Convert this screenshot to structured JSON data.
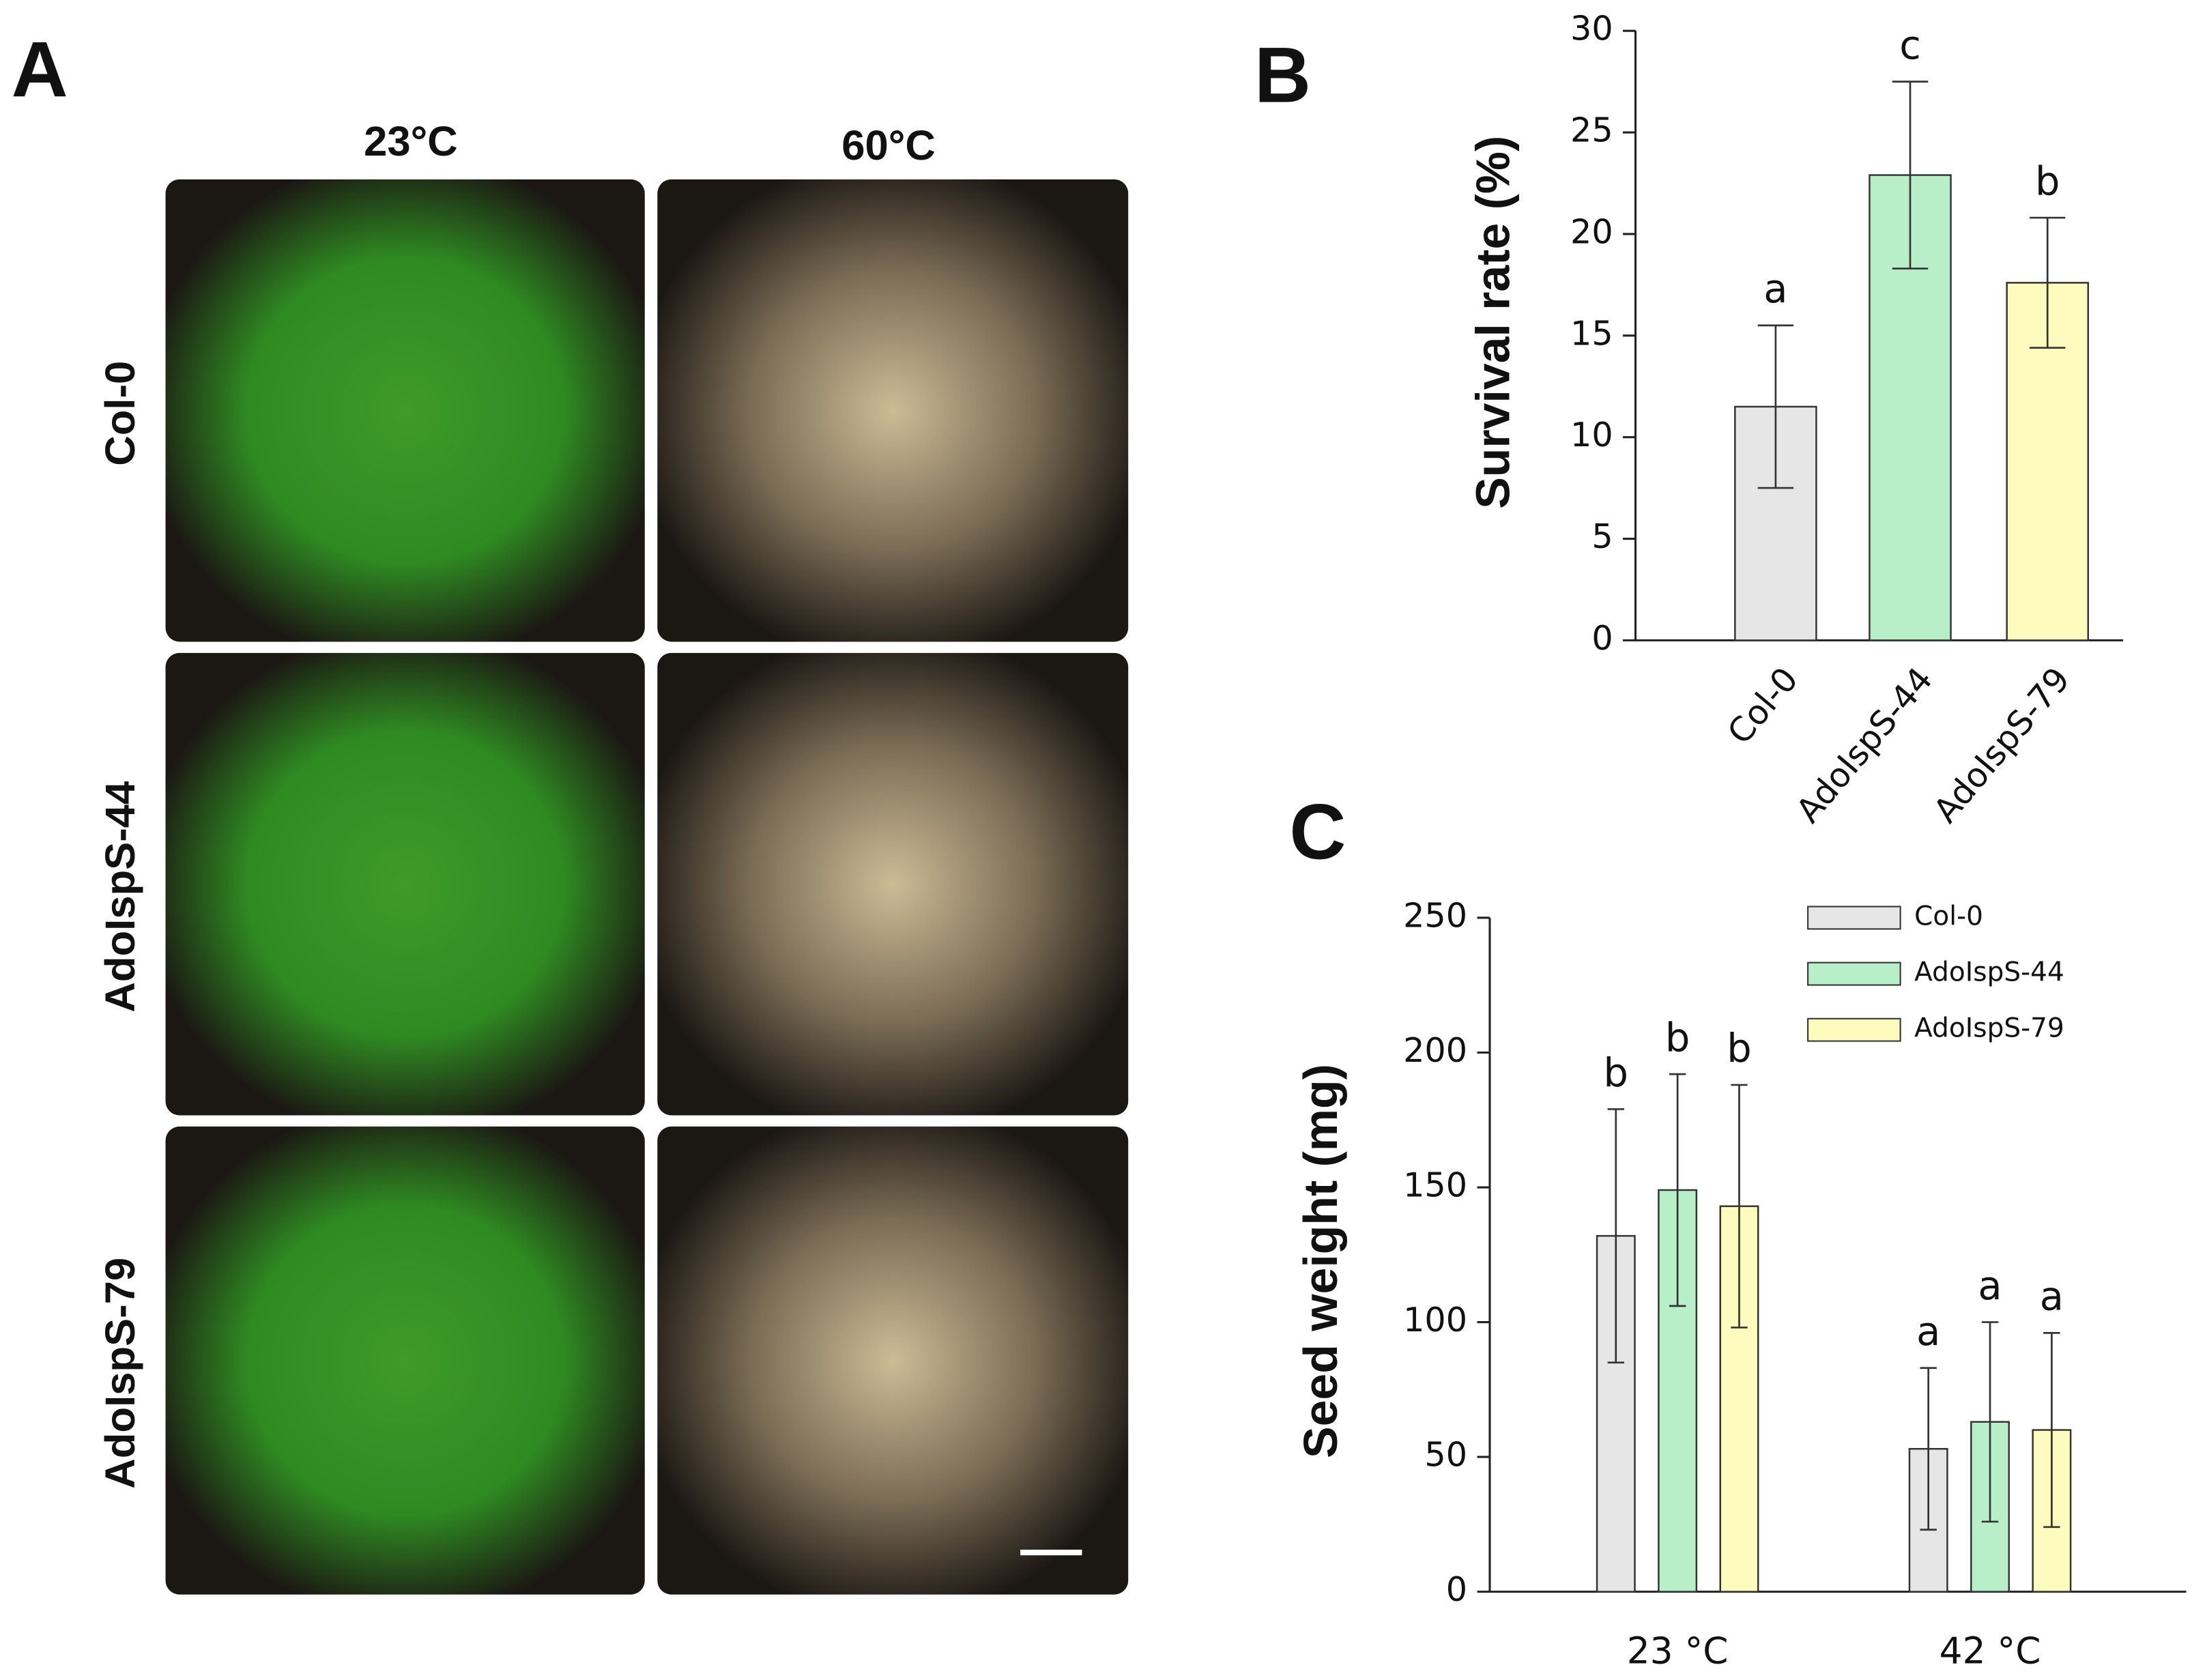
{
  "photo_panel": {
    "panel_label": "A",
    "columns": [
      "23°C",
      "60°C"
    ],
    "rows": [
      "Col-0",
      "AdoIspS-44",
      "AdoIspS-79"
    ]
  },
  "chart_data": [
    {
      "type": "bar",
      "panel_label": "B",
      "y_label": "Survival rate (%)",
      "categories": [
        "Col-0",
        "AdoIspS-44",
        "AdoIspS-79"
      ],
      "values": [
        11.5,
        22.9,
        17.6
      ],
      "errors": [
        4.0,
        4.6,
        3.2
      ],
      "annotations": [
        "a",
        "c",
        "b"
      ],
      "colors": [
        "#e6e6e6",
        "#b8eec8",
        "#fdfbbd"
      ],
      "ylim": [
        0,
        30
      ],
      "yticks": [
        0,
        5,
        10,
        15,
        20,
        25,
        30
      ]
    },
    {
      "type": "bar",
      "panel_label": "C",
      "y_label": "Seed weight (mg)",
      "categories": [
        "23 °C",
        "42 °C"
      ],
      "series": [
        {
          "name": "Col-0",
          "color": "#e6e6e6",
          "values": [
            132,
            53
          ],
          "errors": [
            47,
            30
          ],
          "annotations": [
            "b",
            "a"
          ]
        },
        {
          "name": "AdoIspS-44",
          "color": "#b8eec8",
          "values": [
            149,
            63
          ],
          "errors": [
            43,
            37
          ],
          "annotations": [
            "b",
            "a"
          ]
        },
        {
          "name": "AdoIspS-79",
          "color": "#fdfbbd",
          "values": [
            143,
            60
          ],
          "errors": [
            45,
            36
          ],
          "annotations": [
            "b",
            "a"
          ]
        }
      ],
      "legend": "upper right",
      "ylim": [
        0,
        250
      ],
      "yticks": [
        0,
        50,
        100,
        150,
        200,
        250
      ]
    }
  ]
}
